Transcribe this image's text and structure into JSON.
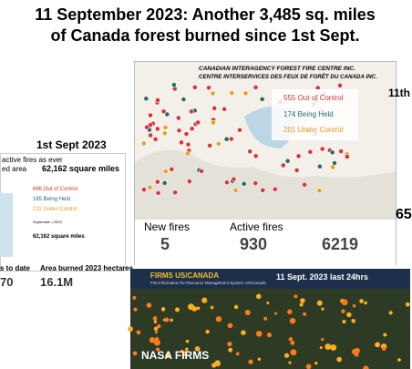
{
  "title": {
    "line1": "11 September 2023: Another 3,485 sq. miles",
    "line2": "of Canada forest burned since 1st Sept."
  },
  "left_panel": {
    "date": "1st Sept 2023",
    "note1": "active fires as ever",
    "note2": "ed area",
    "area": "62,162 square miles",
    "legend": [
      "696 Out of Control",
      "165 Being Held",
      "211 Under Control"
    ],
    "small_date": "September | 2023",
    "area2": "62,162 square miles",
    "label1": "s to date",
    "label2": "Area burned 2023 hectares",
    "value1": "70",
    "value2": "16.1M"
  },
  "center_panel": {
    "org_en": "CANADIAN INTERAGENCY FOREST FIRE CENTRE INC.",
    "org_fr": "CENTRE INTERSERVICES DES FEUX DE FORÊT DU CANADA INC.",
    "legend": [
      "555 Out of Control",
      "174 Being Held",
      "201 Under Control"
    ],
    "stats": [
      {
        "label": "New fires",
        "value": "5"
      },
      {
        "label": "Active fires",
        "value": "930"
      },
      {
        "value": "6219"
      }
    ]
  },
  "right_panel": {
    "date": "11th",
    "value": "65"
  },
  "bottom_panel": {
    "header": "FIRMS US/CANADA",
    "subheader": "Fire Information for Resource Management System US/Canada",
    "date": "11 Sept. 2023 last 24hrs",
    "caption": "NASA FIRMS"
  }
}
